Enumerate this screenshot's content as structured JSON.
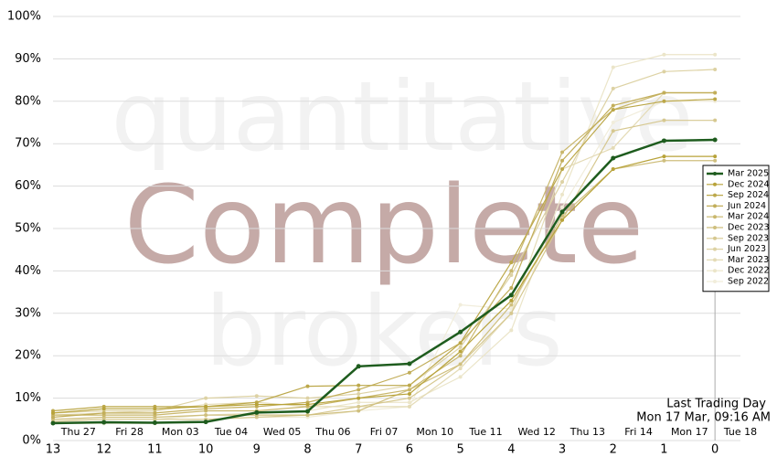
{
  "chart_data": {
    "type": "line",
    "watermark": [
      "quantitative",
      "Complete",
      "brokers"
    ],
    "annotation": [
      "Last Trading Day",
      "Mon 17 Mar, 09:16 AM"
    ],
    "vline": 0,
    "x": [
      13,
      12,
      11,
      10,
      9,
      8,
      7,
      6,
      5,
      4,
      3,
      2,
      1,
      0
    ],
    "xlim": [
      13,
      -0.5
    ],
    "xticks": [
      13,
      12,
      11,
      10,
      9,
      8,
      7,
      6,
      5,
      4,
      3,
      2,
      1,
      0
    ],
    "x2ticks": [
      {
        "value": 12.5,
        "label": "Thu 27"
      },
      {
        "value": 11.5,
        "label": "Fri 28"
      },
      {
        "value": 10.5,
        "label": "Mon 03"
      },
      {
        "value": 9.5,
        "label": "Tue 04"
      },
      {
        "value": 8.5,
        "label": "Wed 05"
      },
      {
        "value": 7.5,
        "label": "Thu 06"
      },
      {
        "value": 6.5,
        "label": "Fri 07"
      },
      {
        "value": 5.5,
        "label": "Mon 10"
      },
      {
        "value": 4.5,
        "label": "Tue 11"
      },
      {
        "value": 3.5,
        "label": "Wed 12"
      },
      {
        "value": 2.5,
        "label": "Thu 13"
      },
      {
        "value": 1.5,
        "label": "Fri 14"
      },
      {
        "value": 0.5,
        "label": "Mon 17"
      },
      {
        "value": -0.5,
        "label": "Tue 18"
      }
    ],
    "ylim": [
      0,
      100
    ],
    "yticks": [
      {
        "value": 0,
        "label": "0%"
      },
      {
        "value": 10,
        "label": "10%"
      },
      {
        "value": 20,
        "label": "20%"
      },
      {
        "value": 30,
        "label": "30%"
      },
      {
        "value": 40,
        "label": "40%"
      },
      {
        "value": 50,
        "label": "50%"
      },
      {
        "value": 60,
        "label": "60%"
      },
      {
        "value": 70,
        "label": "70%"
      },
      {
        "value": 80,
        "label": "80%"
      },
      {
        "value": 90,
        "label": "90%"
      },
      {
        "value": 100,
        "label": "100%"
      }
    ],
    "grid": true,
    "legend": "right",
    "series": [
      {
        "name": "Mar 2025",
        "color": "#1e5c1e",
        "values": [
          4.1,
          4.3,
          4.2,
          4.4,
          6.6,
          6.9,
          17.5,
          18.1,
          25.6,
          34.3,
          53.9,
          66.6,
          70.7,
          70.9
        ]
      },
      {
        "name": "Dec 2024",
        "color": "#b8a33a",
        "values": [
          6.5,
          7.5,
          7.5,
          8,
          8.5,
          8.5,
          10,
          11,
          21,
          33,
          52,
          64,
          67,
          67
        ]
      },
      {
        "name": "Sep 2024",
        "color": "#bca84a",
        "values": [
          7,
          8,
          8,
          8,
          9,
          12.8,
          13,
          13,
          23,
          42,
          64,
          78,
          80,
          80.5
        ]
      },
      {
        "name": "Jun 2024",
        "color": "#c2ae5a",
        "values": [
          5.5,
          6.5,
          6.5,
          7.5,
          8,
          9,
          12,
          16,
          23,
          36,
          66,
          79,
          82,
          82
        ]
      },
      {
        "name": "Mar 2024",
        "color": "#c9b76c",
        "values": [
          6,
          6,
          6,
          7,
          7,
          8,
          10,
          12,
          20,
          40,
          68,
          78,
          82,
          82
        ]
      },
      {
        "name": "Dec 2023",
        "color": "#cfbf7e",
        "values": [
          5,
          5.5,
          5.5,
          6,
          6,
          6,
          7,
          12,
          18,
          32,
          53,
          64,
          66,
          66
        ]
      },
      {
        "name": "Sep 2023",
        "color": "#d6c890",
        "values": [
          4.5,
          5,
          5,
          5,
          5.5,
          6,
          8,
          10,
          18,
          30,
          52,
          73,
          75.5,
          75.5
        ]
      },
      {
        "name": "Jun 2023",
        "color": "#ddd2a4",
        "values": [
          6.5,
          7,
          7,
          10,
          10.5,
          10,
          11,
          13,
          22,
          39,
          61,
          83,
          87,
          87.5
        ]
      },
      {
        "name": "Mar 2023",
        "color": "#e4dbb6",
        "values": [
          6,
          6.5,
          7,
          8.5,
          9,
          8,
          8,
          8,
          17,
          30,
          64,
          69,
          82,
          82
        ]
      },
      {
        "name": "Dec 2022",
        "color": "#ebe5c9",
        "values": [
          5,
          5,
          5,
          6,
          6.5,
          7,
          9,
          9,
          15,
          26,
          58,
          88,
          91,
          91
        ]
      },
      {
        "name": "Sep 2022",
        "color": "#f1eddb",
        "values": [
          4,
          4,
          4,
          5,
          5.5,
          5.5,
          7,
          8,
          32,
          31,
          55,
          75,
          80,
          80
        ]
      }
    ]
  }
}
